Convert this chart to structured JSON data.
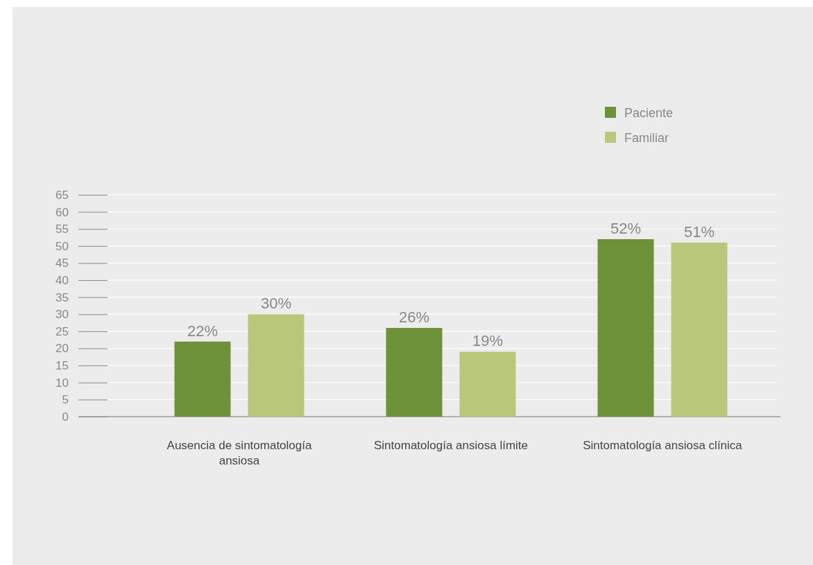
{
  "chart_data": {
    "type": "bar",
    "categories": [
      "Ausencia de sintomatología ansiosa",
      "Sintomatología ansiosa límite",
      "Sintomatología ansiosa clínica"
    ],
    "series": [
      {
        "name": "Paciente",
        "color": "#6e9239",
        "values": [
          22,
          26,
          52
        ],
        "value_labels": [
          "22%",
          "26%",
          "52%"
        ]
      },
      {
        "name": "Familiar",
        "color": "#b8c77a",
        "values": [
          30,
          19,
          51
        ],
        "value_labels": [
          "30%",
          "19%",
          "51%"
        ]
      }
    ],
    "ylim": [
      0,
      65
    ],
    "yticks": [
      0,
      5,
      10,
      15,
      20,
      25,
      30,
      35,
      40,
      45,
      50,
      55,
      60,
      65
    ],
    "grid": "y",
    "legend": "top right"
  }
}
